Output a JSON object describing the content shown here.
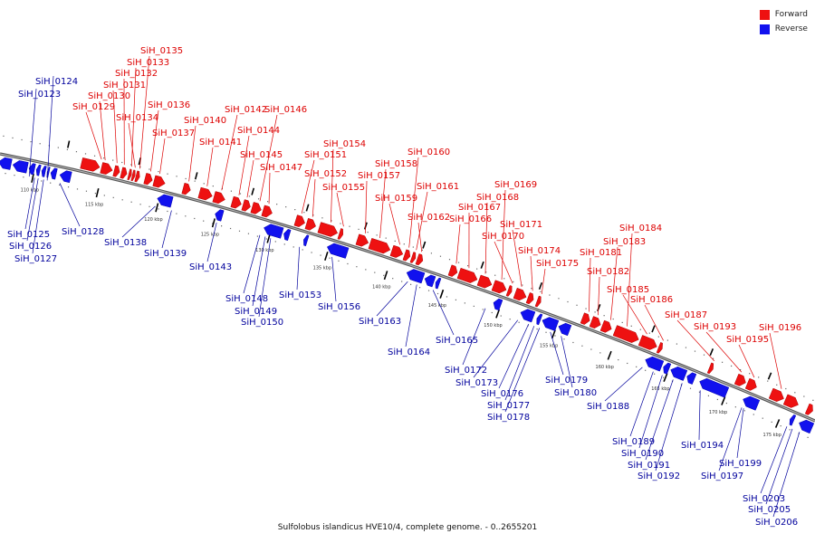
{
  "legend": {
    "forward_label": "Forward",
    "reverse_label": "Reverse",
    "forward_color": "#ee1111",
    "reverse_color": "#1111ee"
  },
  "caption": "Sulfolobus islandicus HVE10/4, complete genome. - 0..2655201",
  "ticks": [
    "110 kbp",
    "115 kbp",
    "120 kbp",
    "125 kbp",
    "130 kbp",
    "135 kbp",
    "140 kbp",
    "145 kbp",
    "150 kbp",
    "155 kbp",
    "160 kbp",
    "165 kbp",
    "170 kbp",
    "175 kbp"
  ],
  "forward_genes": [
    "SiH_0129",
    "SiH_0130",
    "SiH_0131",
    "SiH_0132",
    "SiH_0133",
    "SiH_0135",
    "SiH_0134",
    "SiH_0136",
    "SiH_0137",
    "SiH_0140",
    "SiH_0141",
    "SiH_0142",
    "SiH_0144",
    "SiH_0145",
    "SiH_0146",
    "SiH_0147",
    "SiH_0151",
    "SiH_0152",
    "SiH_0154",
    "SiH_0155",
    "SiH_0157",
    "SiH_0158",
    "SiH_0159",
    "SiH_0160",
    "SiH_0161",
    "SiH_0162",
    "SiH_0166",
    "SiH_0167",
    "SiH_0168",
    "SiH_0169",
    "SiH_0170",
    "SiH_0171",
    "SiH_0174",
    "SiH_0175",
    "SiH_0181",
    "SiH_0182",
    "SiH_0183",
    "SiH_0184",
    "SiH_0185",
    "SiH_0186",
    "SiH_0187",
    "SiH_0193",
    "SiH_0195",
    "SiH_0196"
  ],
  "reverse_genes": [
    "SiH_0123",
    "SiH_0124",
    "SiH_0125",
    "SiH_0126",
    "SiH_0127",
    "SiH_0128",
    "SiH_0138",
    "SiH_0139",
    "SiH_0143",
    "SiH_0148",
    "SiH_0149",
    "SiH_0150",
    "SiH_0153",
    "SiH_0156",
    "SiH_0163",
    "SiH_0164",
    "SiH_0165",
    "SiH_0172",
    "SiH_0173",
    "SiH_0176",
    "SiH_0177",
    "SiH_0178",
    "SiH_0179",
    "SiH_0180",
    "SiH_0188",
    "SiH_0189",
    "SiH_0190",
    "SiH_0191",
    "SiH_0192",
    "SiH_0194",
    "SiH_0197",
    "SiH_0199",
    "SiH_0203",
    "SiH_0205",
    "SiH_0206"
  ]
}
